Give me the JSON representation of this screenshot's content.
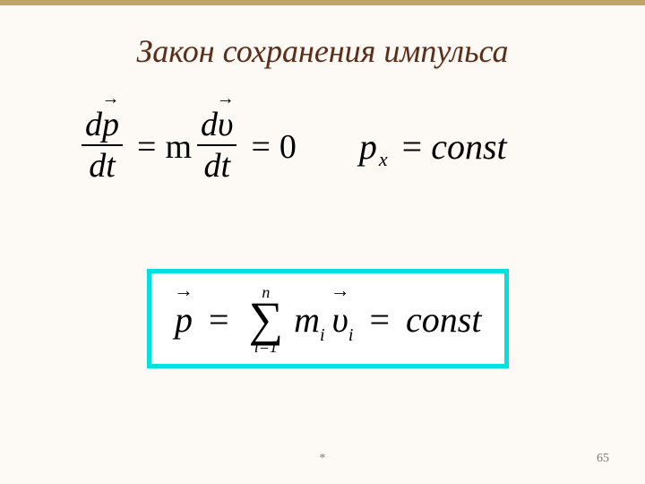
{
  "title": "Закон сохранения импульса",
  "accent_color": "#bfa46a",
  "title_color": "#5a2f1a",
  "eq1": {
    "frac1_num_d": "d",
    "frac1_num_var": "p",
    "frac1_den": "dt",
    "eq_sign": "=",
    "m": "m",
    "frac2_num_d": "d",
    "frac2_num_var": "υ",
    "frac2_den": "dt",
    "rhs": "0"
  },
  "eq2": {
    "p": "p",
    "sub": "x",
    "eq": "=",
    "const": "const"
  },
  "box": {
    "border_color": "#00e0e0",
    "p": "p",
    "eq": "=",
    "sum_top": "n",
    "sum_bot": "i=1",
    "m": "m",
    "m_sub": "i",
    "v": "υ",
    "v_sub": "i",
    "const": "const"
  },
  "footer": {
    "star": "*",
    "page": "65"
  }
}
